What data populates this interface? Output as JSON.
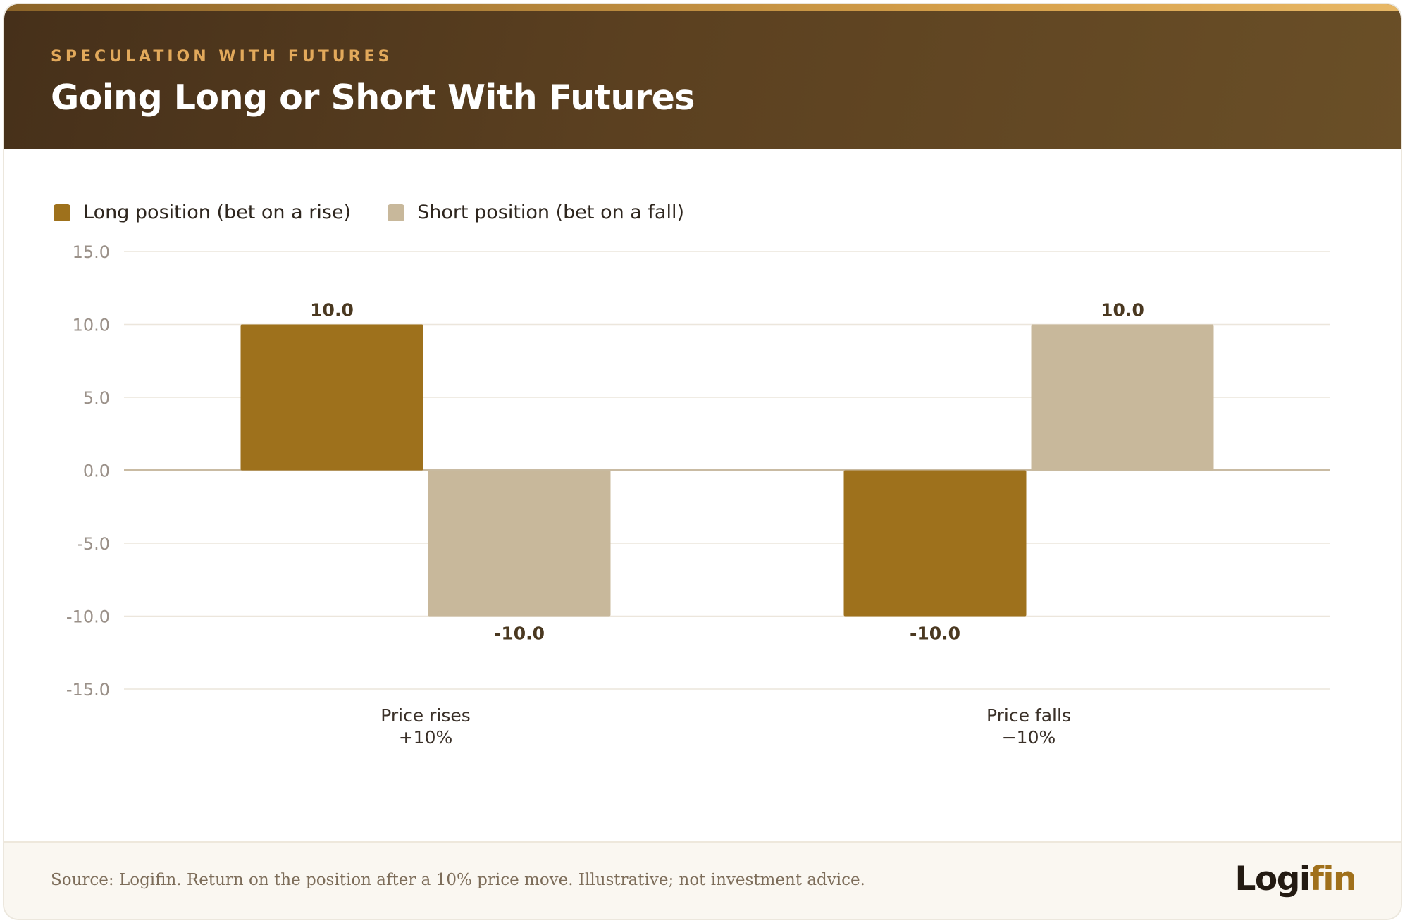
{
  "header": {
    "eyebrow": "SPECULATION WITH FUTURES",
    "title": "Going Long or Short With Futures"
  },
  "footer": {
    "source": "Source: Logifin. Return on the position after a 10% price move. Illustrative; not investment advice.",
    "logo_part1": "Logi",
    "logo_part2": "fin"
  },
  "colors": {
    "long": "#9e711c",
    "short": "#c8b89b",
    "header_dark": "#46301a",
    "accent": "#e2a95b"
  },
  "chart_data": {
    "type": "bar",
    "categories": [
      [
        "Price rises",
        "+10%"
      ],
      [
        "Price falls",
        "−10%"
      ]
    ],
    "series": [
      {
        "name": "Long position (bet on a rise)",
        "values": [
          10.0,
          -10.0
        ],
        "labels": [
          "10.0",
          "-10.0"
        ]
      },
      {
        "name": "Short position (bet on a fall)",
        "values": [
          -10.0,
          10.0
        ],
        "labels": [
          "-10.0",
          "10.0"
        ]
      }
    ],
    "yticks": [
      "15.0",
      "10.0",
      "5.0",
      "0.0",
      "-5.0",
      "-10.0",
      "-15.0"
    ],
    "ylim": [
      -15,
      15
    ],
    "title": "",
    "xlabel": "",
    "ylabel": "",
    "grid": true,
    "legend_position": "top-left"
  }
}
